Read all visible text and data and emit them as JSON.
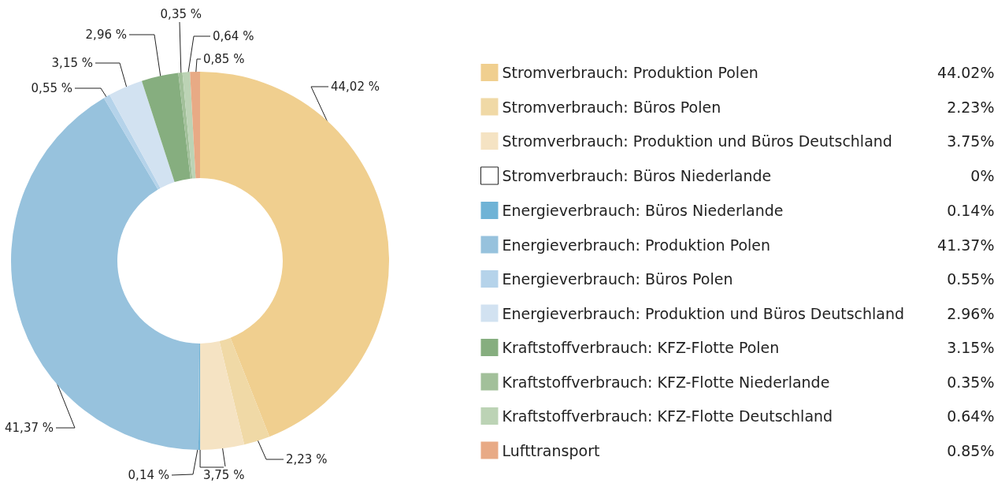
{
  "chart_data": {
    "type": "donut",
    "categories": [
      "Stromverbrauch: Produktion Polen",
      "Stromverbrauch: Büros Polen",
      "Stromverbrauch: Produktion und Büros Deutschland",
      "Stromverbrauch: Büros Niederlande",
      "Energieverbrauch: Büros Niederlande",
      "Energieverbrauch: Produktion Polen",
      "Energieverbrauch: Büros Polen",
      "Energieverbrauch: Produktion und Büros Deutschland",
      "Kraftstoffverbrauch: KFZ-Flotte Polen",
      "Kraftstoffverbrauch: KFZ-Flotte Niederlande",
      "Kraftstoffverbrauch: KFZ-Flotte Deutschland",
      "Lufttransport"
    ],
    "values": [
      44.02,
      2.23,
      3.75,
      0,
      0.14,
      41.37,
      0.55,
      2.96,
      3.15,
      0.35,
      0.64,
      0.85
    ],
    "value_labels": [
      "44.02%",
      "2.23%",
      "3.75%",
      "0%",
      "0.14%",
      "41.37%",
      "0.55%",
      "2.96%",
      "3.15%",
      "0.35%",
      "0.64%",
      "0.85%"
    ],
    "colors": [
      "#f0cf8f",
      "#f0d9a6",
      "#f5e3c3",
      "#ffffff",
      "#6fb3d6",
      "#97c2dd",
      "#b5d3ea",
      "#d2e2f1",
      "#86ae7f",
      "#a2c09a",
      "#bcd3b5",
      "#e8aa85"
    ],
    "annotations": [
      {
        "text": "44,02 %",
        "x": "Stromverbrauch: Produktion Polen"
      },
      {
        "text": "2,23 %",
        "x": "Stromverbrauch: Büros Polen"
      },
      {
        "text": "3,75 %",
        "x": "Stromverbrauch: Produktion und Büros Deutschland"
      },
      {
        "text": "0,14 %",
        "x": "Energieverbrauch: Büros Niederlande"
      },
      {
        "text": "41,37 %",
        "x": "Energieverbrauch: Produktion Polen"
      },
      {
        "text": "0,55 %",
        "x": "Energieverbrauch: Büros Polen"
      },
      {
        "text": "3,15 %",
        "x": "Energieverbrauch: Produktion und Büros Deutschland"
      },
      {
        "text": "2,96 %",
        "x": "Kraftstoffverbrauch: KFZ-Flotte Polen"
      },
      {
        "text": "0,35 %",
        "x": "Kraftstoffverbrauch: KFZ-Flotte Niederlande"
      },
      {
        "text": "0,64 %",
        "x": "Kraftstoffverbrauch: KFZ-Flotte Deutschland"
      },
      {
        "text": "0,85 %",
        "x": "Lufttransport"
      }
    ],
    "legend": "right"
  }
}
